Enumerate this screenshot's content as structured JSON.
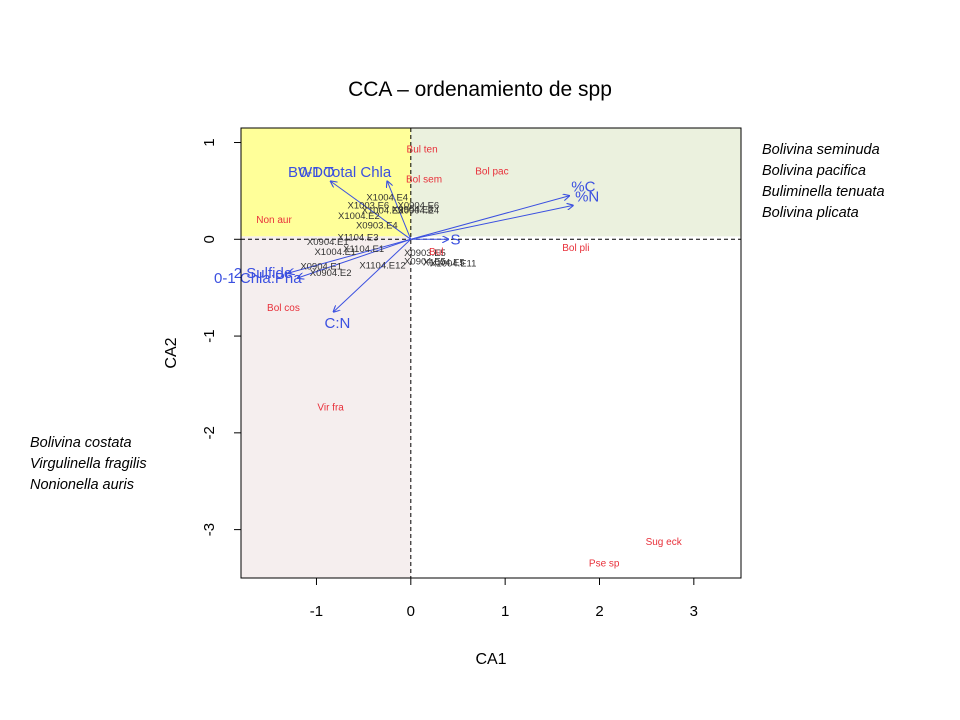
{
  "chart_data": {
    "type": "scatter",
    "title": "CCA – ordenamiento de spp",
    "xlabel": "CA1",
    "ylabel": "CA2",
    "xlim": [
      -1.8,
      3.5
    ],
    "ylim": [
      -3.5,
      1.15
    ],
    "x_ticks": [
      -1,
      0,
      1,
      2,
      3
    ],
    "y_ticks": [
      1,
      0,
      -1,
      -2,
      -3
    ],
    "x_tick_labels": [
      "-1",
      "0",
      "1",
      "2",
      "3"
    ],
    "y_tick_labels": [
      "1",
      "0",
      "-1",
      "-2",
      "-3"
    ],
    "reference_lines": {
      "x": 0,
      "y": 0,
      "style": "dashed"
    },
    "quadrant_shading": [
      {
        "x": [
          -1.8,
          0
        ],
        "y": [
          0.03,
          1.15
        ],
        "color": "#ffff99"
      },
      {
        "x": [
          0,
          3.5
        ],
        "y": [
          0.03,
          1.15
        ],
        "color": "#ebf1de"
      },
      {
        "x": [
          -1.8,
          0
        ],
        "y": [
          -3.5,
          0.03
        ],
        "color": "#f5eeee"
      }
    ],
    "species": [
      {
        "label": "Bul ten",
        "x": 0.12,
        "y": 0.93
      },
      {
        "label": "Bol pac",
        "x": 0.86,
        "y": 0.7
      },
      {
        "label": "Bol sem",
        "x": 0.14,
        "y": 0.62
      },
      {
        "label": "Non aur",
        "x": -1.45,
        "y": 0.2
      },
      {
        "label": "Bol pli",
        "x": 1.75,
        "y": -0.09
      },
      {
        "label": "Bul",
        "x": 0.27,
        "y": -0.13
      },
      {
        "label": "Bol cos",
        "x": -1.35,
        "y": -0.71
      },
      {
        "label": "Vir fra",
        "x": -0.85,
        "y": -1.74
      },
      {
        "label": "Sug eck",
        "x": 2.68,
        "y": -3.13
      },
      {
        "label": "Pse sp",
        "x": 2.05,
        "y": -3.35
      }
    ],
    "samples": [
      {
        "label": "X1004.E4",
        "x": -0.25,
        "y": 0.43
      },
      {
        "label": "X1003.E6",
        "x": -0.45,
        "y": 0.35
      },
      {
        "label": "X0904.E6",
        "x": 0.08,
        "y": 0.35
      },
      {
        "label": "X0904.E3",
        "x": 0.02,
        "y": 0.31
      },
      {
        "label": "X0904.E4",
        "x": 0.08,
        "y": 0.3
      },
      {
        "label": "X1004.E3",
        "x": -0.3,
        "y": 0.3
      },
      {
        "label": "X1004.E2",
        "x": -0.55,
        "y": 0.24
      },
      {
        "label": "X0903.E4",
        "x": -0.36,
        "y": 0.14
      },
      {
        "label": "X1104.E3",
        "x": -0.56,
        "y": 0.02
      },
      {
        "label": "X0904.E1",
        "x": -0.88,
        "y": -0.03
      },
      {
        "label": "X1004.E1",
        "x": -0.8,
        "y": -0.13
      },
      {
        "label": "X1104.E1",
        "x": -0.5,
        "y": -0.1
      },
      {
        "label": "X0903.E5",
        "x": 0.15,
        "y": -0.14
      },
      {
        "label": "X0904.E5",
        "x": 0.15,
        "y": -0.23
      },
      {
        "label": "X1004.E5",
        "x": 0.35,
        "y": -0.24
      },
      {
        "label": "X1004.E11",
        "x": 0.45,
        "y": -0.25
      },
      {
        "label": "X0904.E1",
        "x": -0.95,
        "y": -0.28
      },
      {
        "label": "X0904.E2",
        "x": -0.85,
        "y": -0.35
      },
      {
        "label": "X1104.E12",
        "x": -0.3,
        "y": -0.27
      }
    ],
    "vectors": [
      {
        "label": "0-1 Total Chla",
        "x": -0.25,
        "y": 0.6
      },
      {
        "label": "BWDO",
        "x": -0.85,
        "y": 0.6
      },
      {
        "label": "%C",
        "x": 1.68,
        "y": 0.45
      },
      {
        "label": "%N",
        "x": 1.72,
        "y": 0.35
      },
      {
        "label": "S",
        "x": 0.4,
        "y": 0
      },
      {
        "label": "2 Sulfide",
        "x": -1.3,
        "y": -0.35
      },
      {
        "label": "0-1 Chla:Pha",
        "x": -1.2,
        "y": -0.4
      },
      {
        "label": "C:N",
        "x": -0.82,
        "y": -0.75
      }
    ],
    "colors": {
      "species": "#e8303a",
      "samples": "#333333",
      "vectors": "#3b50e0",
      "axes": "#000000"
    }
  },
  "notes_right": [
    "Bolivina seminuda",
    "Bolivina pacifica",
    "Buliminella tenuata",
    "Bolivina plicata"
  ],
  "notes_left": [
    "Bolivina costata",
    "Virgulinella fragilis",
    "Nonionella auris"
  ]
}
